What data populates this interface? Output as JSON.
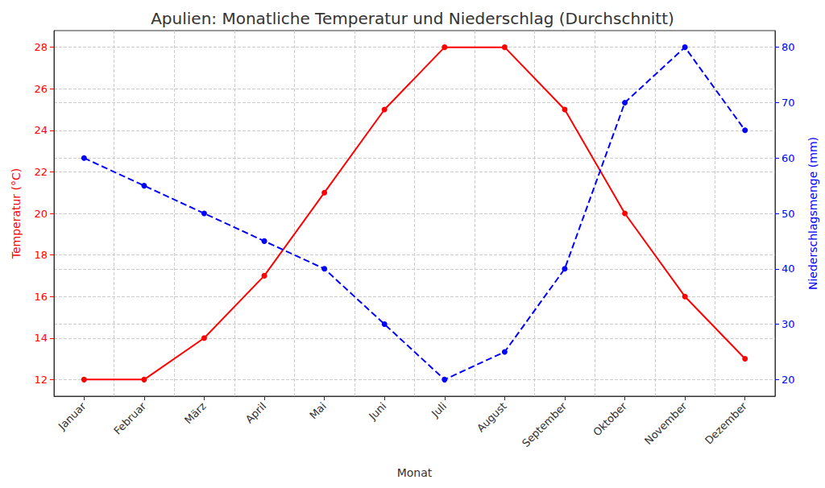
{
  "chart_data": {
    "type": "line",
    "title": "Apulien: Monatliche Temperatur und Niederschlag (Durchschnitt)",
    "xlabel": "Monat",
    "ylabel": "Temperatur (°C)",
    "y2label": "Niederschlagsmenge (mm)",
    "categories": [
      "Januar",
      "Februar",
      "März",
      "April",
      "Mai",
      "Juni",
      "Juli",
      "August",
      "September",
      "Oktober",
      "November",
      "Dezember"
    ],
    "series": [
      {
        "name": "Temperatur (°C)",
        "color": "#ff0000",
        "marker": "circle",
        "line_style": "solid",
        "values": [
          12,
          12,
          14,
          17,
          21,
          25,
          28,
          28,
          25,
          20,
          16,
          13
        ]
      },
      {
        "name": "Niederschlagsmenge (mm)",
        "color": "#0000ff",
        "marker": "circle",
        "line_style": "dashed",
        "axis": "y2",
        "values": [
          60,
          55,
          50,
          45,
          40,
          30,
          20,
          25,
          40,
          70,
          80,
          65
        ]
      }
    ],
    "ylim": [
      11.2,
      28.8
    ],
    "yticks": [
      12,
      14,
      16,
      18,
      20,
      22,
      24,
      26,
      28
    ],
    "y2lim": [
      17,
      83
    ],
    "y2ticks": [
      20,
      30,
      40,
      50,
      60,
      70,
      80
    ],
    "grid": true
  }
}
